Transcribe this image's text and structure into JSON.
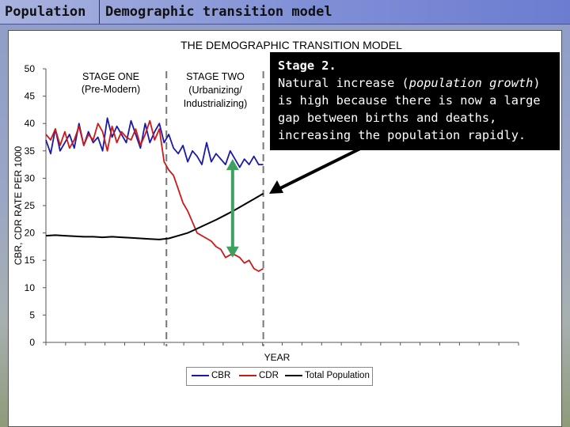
{
  "slide": {
    "tab_left": "Population",
    "tab_right": "Demographic transition model"
  },
  "note": {
    "heading": "Stage 2.",
    "line1_pre": "Natural increase (",
    "line1_em": "population growth",
    "line1_post": ")",
    "line2": "is high because there is now a large",
    "line3": "gap between births and deaths,",
    "line4": "increasing the population rapidly."
  },
  "colors": {
    "cbr": "#1a1aa6",
    "cdr": "#cc1a1a",
    "pop": "#000000",
    "arrow_green": "#3fa062",
    "dashes": "#777777"
  },
  "chart_data": {
    "type": "line",
    "title": "THE DEMOGRAPHIC TRANSITION MODEL",
    "xlabel": "YEAR",
    "ylabel": "CBR, CDR RATE PER 1000",
    "ylim": [
      0,
      50
    ],
    "yticks": [
      0,
      5,
      10,
      15,
      20,
      25,
      30,
      35,
      40,
      45,
      50
    ],
    "xlim": [
      0,
      100
    ],
    "stages": [
      {
        "name": "STAGE ONE",
        "sub": "(Pre-Modern)",
        "end_x": 25.5
      },
      {
        "name": "STAGE TWO",
        "sub1": "(Urbanizing/",
        "sub2": "Industrializing)",
        "end_x": 46
      }
    ],
    "series": [
      {
        "name": "CBR",
        "x": [
          0,
          1,
          2,
          3,
          4,
          5,
          6,
          7,
          8,
          9,
          10,
          11,
          12,
          13,
          14,
          15,
          16,
          17,
          18,
          19,
          20,
          21,
          22,
          23,
          24,
          25,
          26,
          27,
          28,
          29,
          30,
          31,
          32,
          33,
          34,
          35,
          36,
          37,
          38,
          39,
          40,
          41,
          42,
          43,
          44,
          45,
          46
        ],
        "y": [
          37,
          34.5,
          39,
          35,
          36.5,
          38,
          35.5,
          40,
          36,
          38.5,
          36.5,
          37.5,
          35,
          41,
          37.5,
          39.5,
          38,
          36.5,
          40.5,
          38,
          35.5,
          40,
          36.5,
          38.5,
          40,
          36.5,
          38,
          35.5,
          34.5,
          36,
          33,
          35,
          34,
          32.5,
          36.5,
          33,
          34.5,
          33.5,
          32.5,
          35,
          33.5,
          32,
          33.5,
          32.5,
          34,
          32.5,
          32.5
        ]
      },
      {
        "name": "CDR",
        "x": [
          0,
          1,
          2,
          3,
          4,
          5,
          6,
          7,
          8,
          9,
          10,
          11,
          12,
          13,
          14,
          15,
          16,
          17,
          18,
          19,
          20,
          21,
          22,
          23,
          24,
          25,
          26,
          27,
          28,
          29,
          30,
          31,
          32,
          33,
          34,
          35,
          36,
          37,
          38,
          39,
          40,
          41,
          42,
          43,
          44,
          45,
          46
        ],
        "y": [
          38,
          37,
          39,
          36,
          38.5,
          35.5,
          37,
          39.5,
          36,
          38,
          37,
          40,
          38.5,
          35,
          39.5,
          36.5,
          38.5,
          37.5,
          37,
          39,
          36,
          38,
          40.5,
          37,
          39,
          33,
          31.5,
          30.5,
          28,
          25.5,
          24,
          22,
          20,
          19.5,
          19,
          18.5,
          17.5,
          17,
          15.5,
          16,
          16,
          15.5,
          14.5,
          15,
          13.5,
          13,
          13.5
        ]
      },
      {
        "name": "Total Population",
        "x": [
          0,
          2,
          4,
          6,
          8,
          10,
          12,
          14,
          16,
          18,
          20,
          22,
          24,
          26,
          28,
          30,
          32,
          34,
          36,
          38,
          40,
          42,
          44,
          46
        ],
        "y": [
          19.5,
          19.6,
          19.5,
          19.4,
          19.3,
          19.3,
          19.2,
          19.3,
          19.2,
          19.1,
          19,
          18.9,
          18.8,
          19,
          19.5,
          20,
          20.8,
          21.6,
          22.4,
          23.3,
          24.2,
          25.2,
          26.2,
          27.2
        ]
      }
    ],
    "annotation_arrow": {
      "from_y": 15.5,
      "to_y": 33.5,
      "x": 39.5
    },
    "legend": [
      "CBR",
      "CDR",
      "Total Population"
    ]
  }
}
